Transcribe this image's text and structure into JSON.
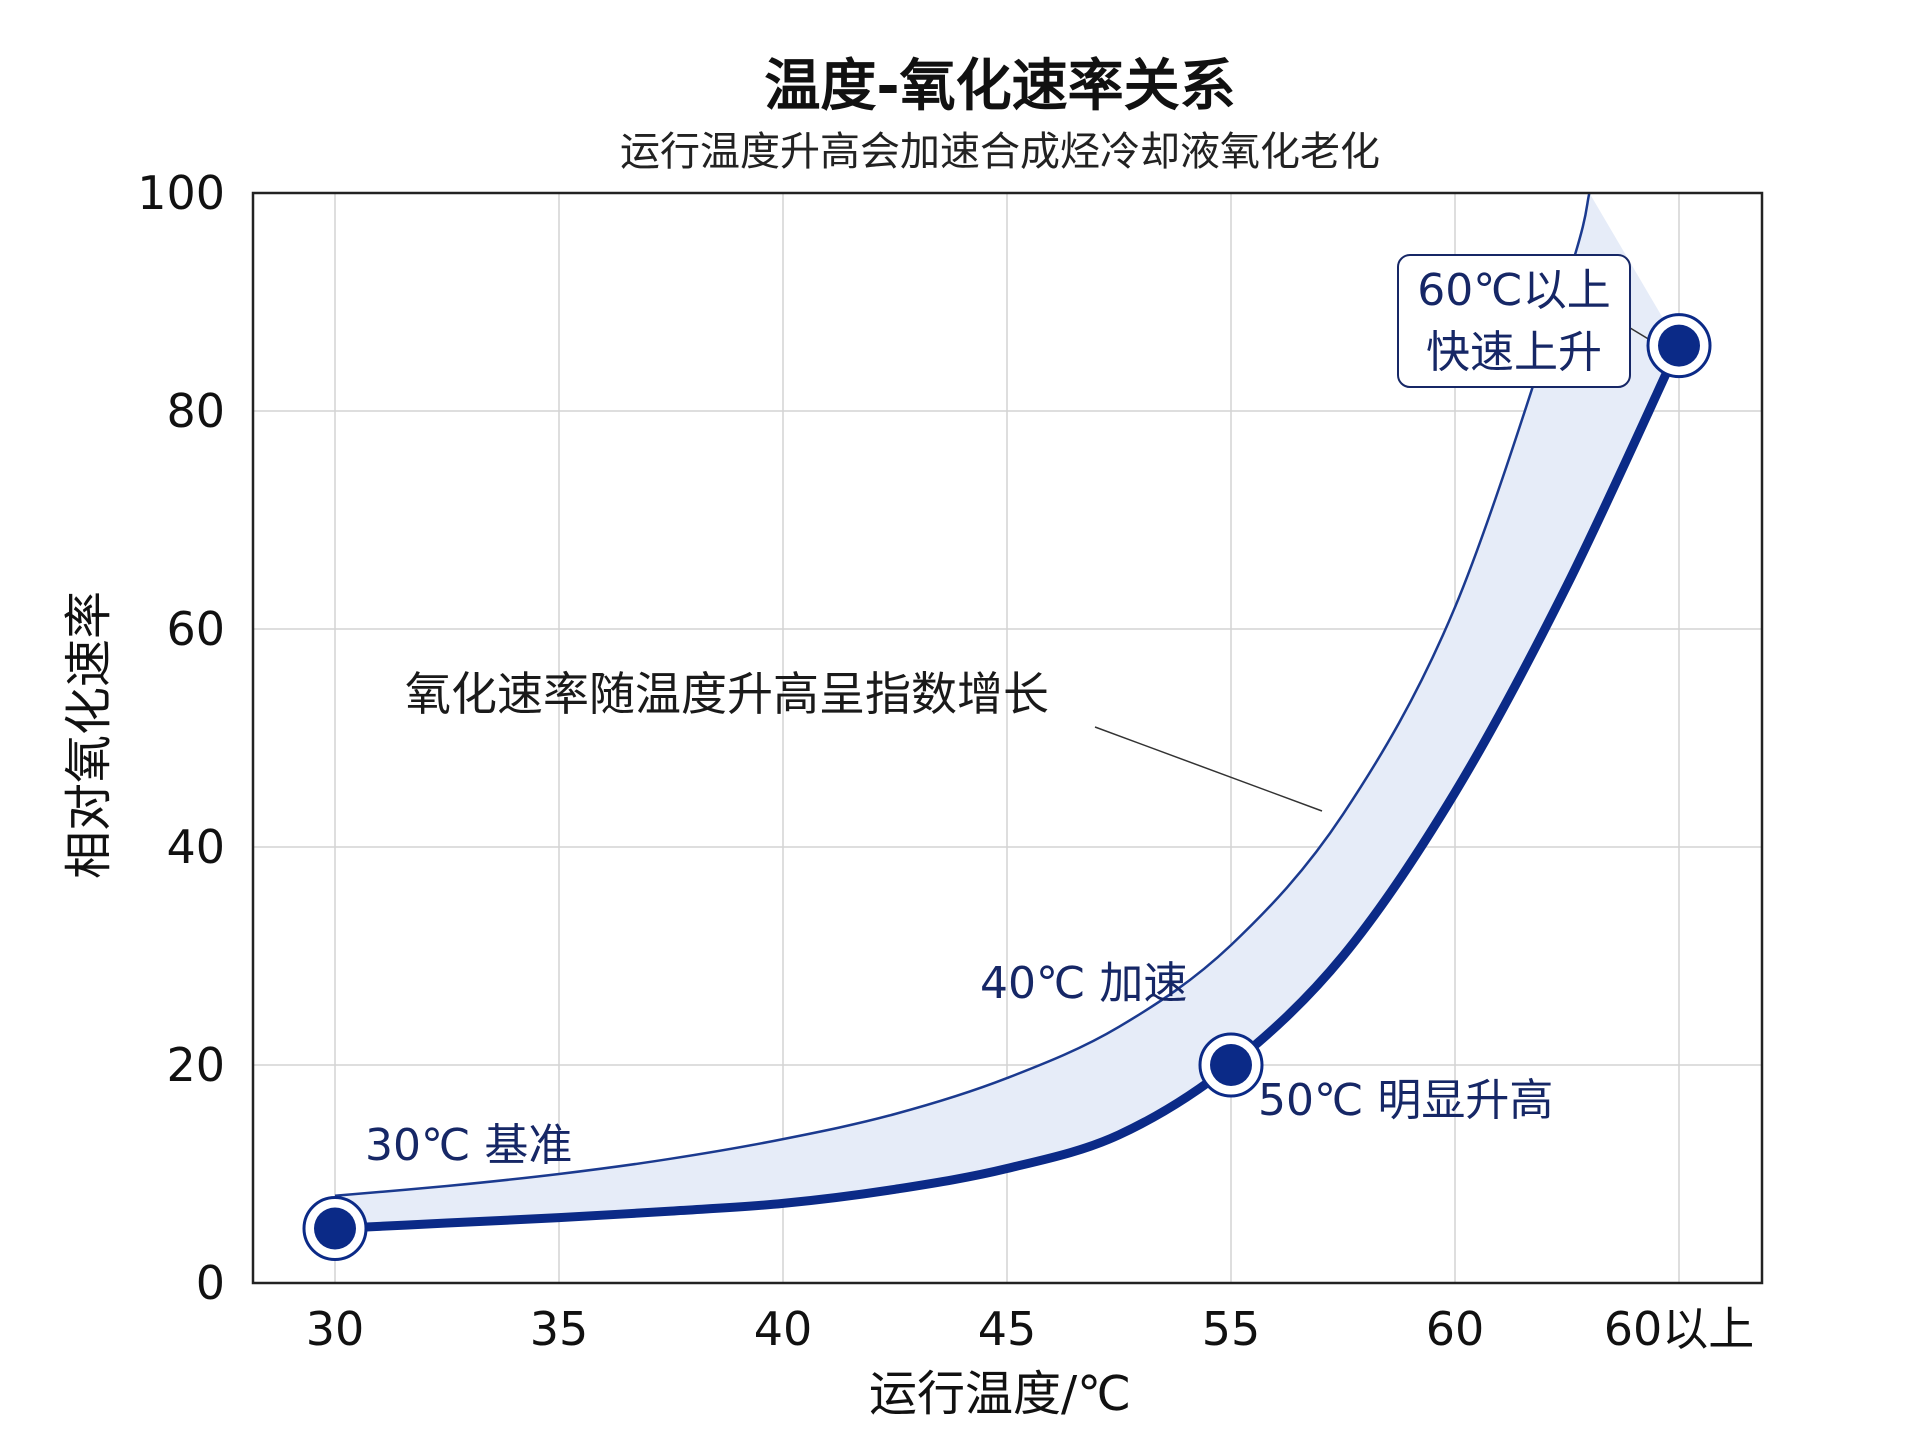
{
  "chart_data": {
    "type": "line",
    "title": "温度-氧化速率关系",
    "subtitle": "运行温度升高会加速合成烃冷却液氧化老化",
    "xlabel": "运行温度/℃",
    "ylabel": "相对氧化速率",
    "x_ticks": [
      "30",
      "35",
      "40",
      "45",
      "55",
      "60",
      "60以上"
    ],
    "y_ticks": [
      0,
      20,
      40,
      60,
      80,
      100
    ],
    "ylim": [
      0,
      100
    ],
    "grid": true,
    "series": [
      {
        "x": [
          0,
          0.5,
          1,
          1.5,
          2,
          2.5,
          3,
          3.5,
          4,
          4.5,
          5,
          5.5,
          6
        ],
        "values": [
          5,
          5.5,
          6,
          6.6,
          7.3,
          8.6,
          10.5,
          13.6,
          20,
          30,
          45,
          64,
          86
        ]
      },
      {
        "x": [
          0,
          0.5,
          1,
          1.5,
          2,
          2.5,
          3,
          3.5,
          4,
          4.5,
          5,
          5.5,
          5.6
        ],
        "values": [
          8,
          8.9,
          10,
          11.4,
          13.2,
          15.5,
          18.8,
          23.5,
          31,
          43,
          62,
          92,
          100
        ]
      }
    ],
    "highlight_points": [
      {
        "x": 0,
        "y": 5
      },
      {
        "x": 4,
        "y": 20
      },
      {
        "x": 6,
        "y": 86
      }
    ],
    "annotations": [
      {
        "text": "30℃ 基准"
      },
      {
        "text": "40℃ 加速"
      },
      {
        "text": "50℃ 明显升高"
      },
      {
        "text": "60℃以上",
        "text2": "快速上升"
      },
      {
        "text": "氧化速率随温度升高呈指数增长"
      }
    ],
    "colors": {
      "line": "#0b2a87",
      "band": "#e6ecf8",
      "band_edge": "#1b3a8f",
      "point": "#0b2a87",
      "grid": "#d4d4d4",
      "text": "#111111",
      "annotation": "#162766"
    }
  }
}
